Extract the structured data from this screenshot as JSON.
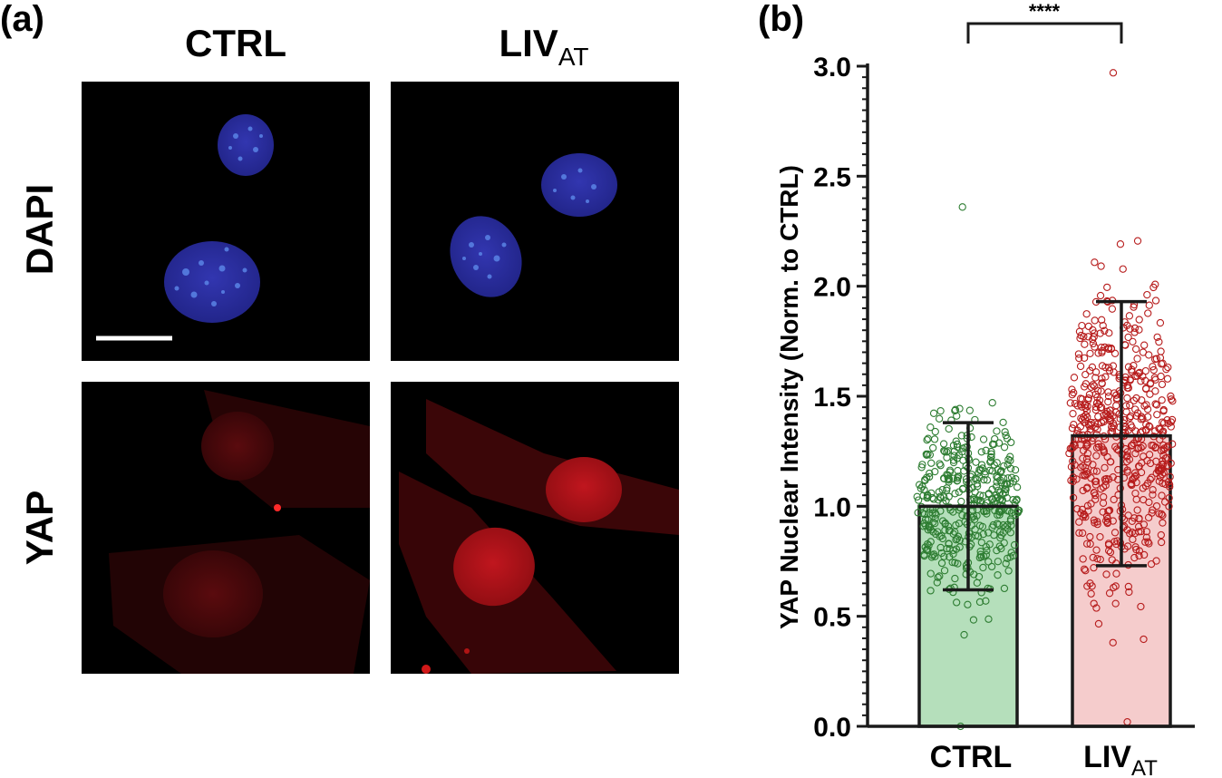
{
  "panel_a": {
    "label": "(a)",
    "columns": [
      {
        "main": "CTRL",
        "sub": ""
      },
      {
        "main": "LIV",
        "sub": "AT"
      }
    ],
    "rows": [
      "DAPI",
      "YAP"
    ],
    "colors": {
      "dapi_nucleus": "#2a2fa0",
      "dapi_spot": "#4f7fe8",
      "yap_nucleus": "#b8141c",
      "yap_cytoplasm": "#4a0707",
      "scale_bar": "#ffffff",
      "image_bg": "#000000"
    }
  },
  "panel_b": {
    "label": "(b)",
    "significance": "****"
  },
  "chart_data": {
    "type": "bar",
    "categories": [
      {
        "main": "CTRL",
        "sub": ""
      },
      {
        "main": "LIV",
        "sub": "AT"
      }
    ],
    "values": [
      1.0,
      1.32
    ],
    "sd_low": [
      0.62,
      0.73
    ],
    "sd_high": [
      1.38,
      1.93
    ],
    "point_ranges": [
      [
        0.0,
        2.36
      ],
      [
        0.02,
        2.97
      ]
    ],
    "point_counts": [
      430,
      600
    ],
    "xlabel": "",
    "ylabel": "YAP Nuclear Intensity (Norm. to CTRL)",
    "ylim": [
      0,
      3.0
    ],
    "yticks": [
      "0.0",
      "0.5",
      "1.0",
      "1.5",
      "2.0",
      "2.5",
      "3.0"
    ],
    "bar_fill_colors": [
      "#b5dfbb",
      "#f5cccc"
    ],
    "point_colors": [
      "#2e7d32",
      "#b71c1c"
    ],
    "outline_color": "#1a1a1a",
    "grid": false,
    "legend": "none"
  }
}
